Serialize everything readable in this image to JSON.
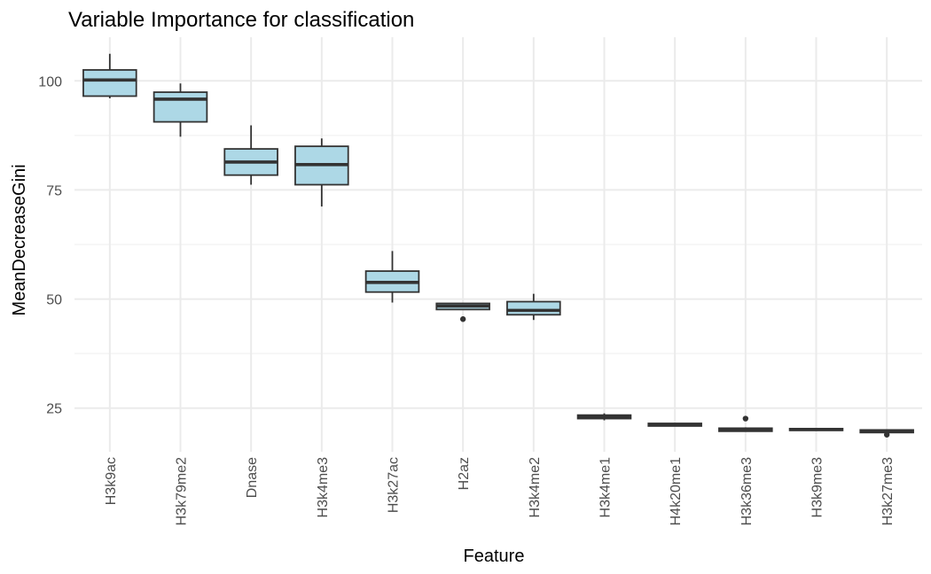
{
  "chart_data": {
    "type": "boxplot",
    "title": "Variable Importance for classification",
    "xlabel": "Feature",
    "ylabel": "MeanDecreaseGini",
    "ylim": [
      15,
      110
    ],
    "y_ticks": [
      25,
      50,
      75,
      100
    ],
    "grid": true,
    "box_fill": "#add8e6",
    "box_stroke": "#333333",
    "categories": [
      "H3k9ac",
      "H3k79me2",
      "Dnase",
      "H3k4me3",
      "H3k27ac",
      "H2az",
      "H3k4me2",
      "H3k4me1",
      "H4k20me1",
      "H3k36me3",
      "H3k9me3",
      "H3k27me3"
    ],
    "boxes": [
      {
        "min": 96,
        "q1": 96.5,
        "median": 100.2,
        "q3": 102.5,
        "max": 106.2,
        "outliers": []
      },
      {
        "min": 87.2,
        "q1": 90.6,
        "median": 95.8,
        "q3": 97.4,
        "max": 99.4,
        "outliers": []
      },
      {
        "min": 76.2,
        "q1": 78.4,
        "median": 81.4,
        "q3": 84.4,
        "max": 89.8,
        "outliers": []
      },
      {
        "min": 71.2,
        "q1": 76.2,
        "median": 80.8,
        "q3": 85.0,
        "max": 86.8,
        "outliers": []
      },
      {
        "min": 49.2,
        "q1": 51.6,
        "median": 53.8,
        "q3": 56.4,
        "max": 61.0,
        "outliers": []
      },
      {
        "min": 47.6,
        "q1": 47.6,
        "median": 48.4,
        "q3": 49.0,
        "max": 49.0,
        "outliers": [
          45.4
        ]
      },
      {
        "min": 45.2,
        "q1": 46.4,
        "median": 47.4,
        "q3": 49.4,
        "max": 51.2,
        "outliers": []
      },
      {
        "min": 22.2,
        "q1": 22.6,
        "median": 23.0,
        "q3": 23.4,
        "max": 23.8,
        "outliers": []
      },
      {
        "min": 20.8,
        "q1": 20.9,
        "median": 21.2,
        "q3": 21.5,
        "max": 21.6,
        "outliers": []
      },
      {
        "min": 19.6,
        "q1": 19.7,
        "median": 20.0,
        "q3": 20.4,
        "max": 20.6,
        "outliers": [
          22.6
        ]
      },
      {
        "min": 19.9,
        "q1": 19.9,
        "median": 20.1,
        "q3": 20.3,
        "max": 20.4,
        "outliers": []
      },
      {
        "min": 19.3,
        "q1": 19.4,
        "median": 19.7,
        "q3": 20.0,
        "max": 20.1,
        "outliers": [
          18.9
        ]
      }
    ]
  }
}
